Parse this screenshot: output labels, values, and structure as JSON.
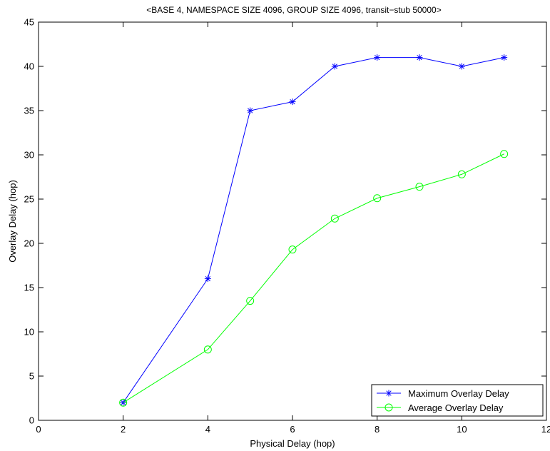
{
  "chart_data": {
    "type": "line",
    "title": "<BASE 4, NAMESPACE SIZE 4096, GROUP SIZE 4096, transit−stub 50000>",
    "xlabel": "Physical Delay (hop)",
    "ylabel": "Overlay Delay (hop)",
    "xlim": [
      0,
      12
    ],
    "ylim": [
      0,
      45
    ],
    "xticks": [
      0,
      2,
      4,
      6,
      8,
      10,
      12
    ],
    "yticks": [
      0,
      5,
      10,
      15,
      20,
      25,
      30,
      35,
      40,
      45
    ],
    "grid": false,
    "legend_position": "bottom-right",
    "series": [
      {
        "name": "Maximum Overlay Delay",
        "color": "#0000ff",
        "marker": "asterisk",
        "x": [
          2,
          4,
          5,
          6,
          7,
          8,
          9,
          10,
          11
        ],
        "y": [
          2,
          16,
          35,
          36,
          40,
          41,
          41,
          40,
          41
        ]
      },
      {
        "name": "Average Overlay Delay",
        "color": "#00ff00",
        "marker": "circle",
        "x": [
          2,
          4,
          5,
          6,
          7,
          8,
          9,
          10,
          11
        ],
        "y": [
          2,
          8,
          13.5,
          19.3,
          22.8,
          25.1,
          26.4,
          27.8,
          30.1
        ]
      }
    ]
  }
}
